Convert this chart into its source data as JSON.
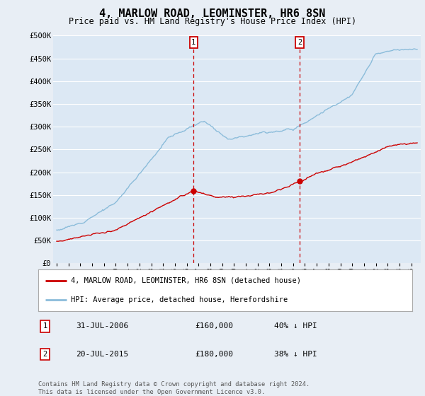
{
  "title": "4, MARLOW ROAD, LEOMINSTER, HR6 8SN",
  "subtitle": "Price paid vs. HM Land Registry's House Price Index (HPI)",
  "footer": "Contains HM Land Registry data © Crown copyright and database right 2024.\nThis data is licensed under the Open Government Licence v3.0.",
  "line1_label": "4, MARLOW ROAD, LEOMINSTER, HR6 8SN (detached house)",
  "line2_label": "HPI: Average price, detached house, Herefordshire",
  "line1_color": "#cc0000",
  "line2_color": "#8bbcda",
  "annotation1": {
    "num": "1",
    "date": "31-JUL-2006",
    "price": "£160,000",
    "pct": "40% ↓ HPI"
  },
  "annotation2": {
    "num": "2",
    "date": "20-JUL-2015",
    "price": "£180,000",
    "pct": "38% ↓ HPI"
  },
  "vline1_x": 2006.58,
  "vline2_x": 2015.55,
  "sale1_y": 160000,
  "sale2_y": 180000,
  "ylim": [
    0,
    500000
  ],
  "xlim": [
    1994.7,
    2025.8
  ],
  "bg_color": "#e8eef5",
  "plot_bg": "#dce8f4",
  "grid_color": "#ffffff"
}
